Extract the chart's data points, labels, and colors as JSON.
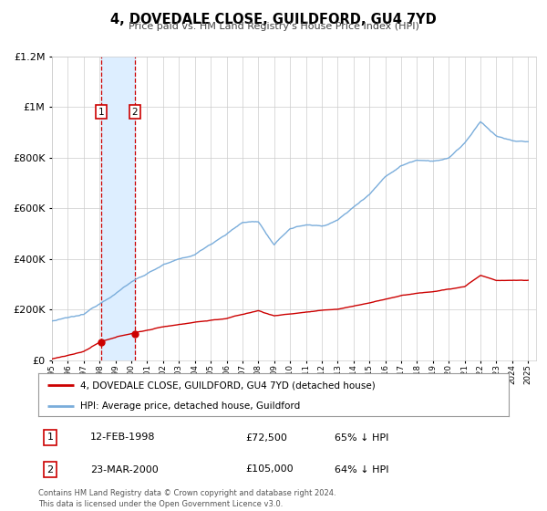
{
  "title": "4, DOVEDALE CLOSE, GUILDFORD, GU4 7YD",
  "subtitle": "Price paid vs. HM Land Registry's House Price Index (HPI)",
  "legend_line1": "4, DOVEDALE CLOSE, GUILDFORD, GU4 7YD (detached house)",
  "legend_line2": "HPI: Average price, detached house, Guildford",
  "transaction1_label": "1",
  "transaction1_date": "12-FEB-1998",
  "transaction1_price": "£72,500",
  "transaction1_hpi": "65% ↓ HPI",
  "transaction2_label": "2",
  "transaction2_date": "23-MAR-2000",
  "transaction2_price": "£105,000",
  "transaction2_hpi": "64% ↓ HPI",
  "copyright": "Contains HM Land Registry data © Crown copyright and database right 2024.\nThis data is licensed under the Open Government Licence v3.0.",
  "xmin": 1995.0,
  "xmax": 2025.5,
  "ymin": 0,
  "ymax": 1200000,
  "transaction1_x": 1998.12,
  "transaction1_y": 72500,
  "transaction2_x": 2000.23,
  "transaction2_y": 105000,
  "highlight_x1": 1998.12,
  "highlight_x2": 2000.23,
  "red_color": "#cc0000",
  "blue_color": "#7aaddb",
  "highlight_color": "#ddeeff",
  "grid_color": "#cccccc",
  "background_color": "#ffffff",
  "yticks": [
    0,
    200000,
    400000,
    600000,
    800000,
    1000000,
    1200000
  ],
  "ytick_labels": [
    "£0",
    "£200K",
    "£400K",
    "£600K",
    "£800K",
    "£1M",
    "£1.2M"
  ]
}
